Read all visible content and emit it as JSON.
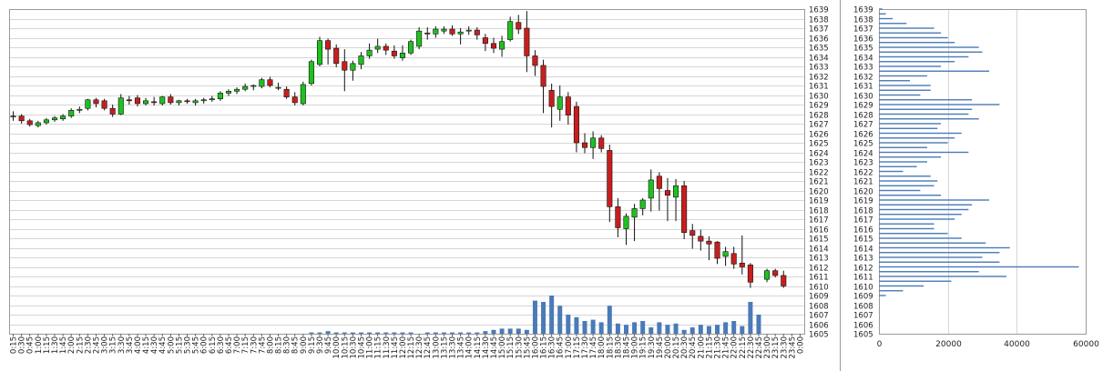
{
  "chart_data": [
    {
      "type": "candlestick",
      "title": "",
      "xlabel": "",
      "ylabel": "",
      "ylim": [
        1605,
        1639
      ],
      "yticks": [
        1605,
        1606,
        1607,
        1608,
        1609,
        1610,
        1611,
        1612,
        1613,
        1614,
        1615,
        1616,
        1617,
        1618,
        1619,
        1620,
        1621,
        1622,
        1623,
        1624,
        1625,
        1626,
        1627,
        1628,
        1629,
        1630,
        1631,
        1632,
        1633,
        1634,
        1635,
        1636,
        1637,
        1638,
        1639
      ],
      "up_color": "#1fc11f",
      "down_color": "#c81e1e",
      "volume_color": "#4a7ab8",
      "categories": [
        "0:15",
        "0:30",
        "0:45",
        "1:00",
        "1:15",
        "1:30",
        "1:45",
        "2:00",
        "2:15",
        "2:30",
        "2:45",
        "3:00",
        "3:15",
        "3:30",
        "3:45",
        "4:00",
        "4:15",
        "4:30",
        "4:45",
        "5:00",
        "5:15",
        "5:30",
        "5:45",
        "6:00",
        "6:15",
        "6:30",
        "6:45",
        "7:00",
        "7:15",
        "7:30",
        "7:45",
        "8:00",
        "8:15",
        "8:30",
        "8:45",
        "9:00",
        "9:15",
        "9:30",
        "9:45",
        "10:00",
        "10:15",
        "10:30",
        "10:45",
        "11:00",
        "11:15",
        "11:30",
        "11:45",
        "12:00",
        "12:15",
        "12:30",
        "12:45",
        "13:00",
        "13:15",
        "13:30",
        "13:45",
        "14:00",
        "14:15",
        "14:30",
        "14:45",
        "15:00",
        "15:15",
        "15:30",
        "15:45",
        "16:00",
        "16:15",
        "16:30",
        "16:45",
        "17:00",
        "17:15",
        "17:30",
        "17:45",
        "18:00",
        "18:15",
        "18:30",
        "18:45",
        "19:00",
        "19:15",
        "19:30",
        "19:45",
        "20:00",
        "20:15",
        "20:30",
        "20:45",
        "21:00",
        "21:15",
        "21:30",
        "21:45",
        "22:00",
        "22:15",
        "22:30",
        "22:45",
        "23:00",
        "23:15",
        "23:30",
        "23:45",
        "0:00"
      ],
      "ohlc": [
        [
          1627.8,
          1628.3,
          1627.3,
          1627.8
        ],
        [
          1627.8,
          1628.0,
          1627.0,
          1627.3
        ],
        [
          1627.3,
          1627.5,
          1626.7,
          1626.9
        ],
        [
          1626.8,
          1627.3,
          1626.6,
          1627.1
        ],
        [
          1627.1,
          1627.6,
          1626.9,
          1627.4
        ],
        [
          1627.4,
          1627.8,
          1627.2,
          1627.6
        ],
        [
          1627.5,
          1628.0,
          1627.3,
          1627.8
        ],
        [
          1627.8,
          1628.6,
          1627.6,
          1628.4
        ],
        [
          1628.4,
          1628.8,
          1628.1,
          1628.5
        ],
        [
          1628.6,
          1629.6,
          1628.4,
          1629.5
        ],
        [
          1629.5,
          1629.7,
          1628.7,
          1629.1
        ],
        [
          1629.4,
          1629.6,
          1628.4,
          1628.6
        ],
        [
          1628.6,
          1629.0,
          1627.7,
          1628.0
        ],
        [
          1628.0,
          1630.1,
          1627.9,
          1629.7
        ],
        [
          1629.5,
          1629.9,
          1629.0,
          1629.4
        ],
        [
          1629.7,
          1630.0,
          1628.8,
          1629.1
        ],
        [
          1629.1,
          1629.7,
          1628.9,
          1629.4
        ],
        [
          1629.3,
          1629.8,
          1628.9,
          1629.2
        ],
        [
          1629.1,
          1629.9,
          1628.9,
          1629.8
        ],
        [
          1629.8,
          1630.1,
          1629.0,
          1629.2
        ],
        [
          1629.2,
          1629.5,
          1628.9,
          1629.4
        ],
        [
          1629.4,
          1629.6,
          1629.1,
          1629.3
        ],
        [
          1629.2,
          1629.6,
          1628.9,
          1629.4
        ],
        [
          1629.4,
          1629.7,
          1629.1,
          1629.5
        ],
        [
          1629.5,
          1629.9,
          1629.3,
          1629.6
        ],
        [
          1629.6,
          1630.4,
          1629.4,
          1630.2
        ],
        [
          1630.2,
          1630.6,
          1629.9,
          1630.4
        ],
        [
          1630.4,
          1630.8,
          1630.1,
          1630.6
        ],
        [
          1630.6,
          1631.2,
          1630.4,
          1630.9
        ],
        [
          1630.9,
          1631.1,
          1630.5,
          1631.0
        ],
        [
          1630.9,
          1631.8,
          1630.7,
          1631.6
        ],
        [
          1631.6,
          1631.9,
          1630.8,
          1631.0
        ],
        [
          1630.8,
          1631.3,
          1630.5,
          1630.8
        ],
        [
          1630.6,
          1630.9,
          1629.6,
          1629.8
        ],
        [
          1629.8,
          1630.3,
          1628.9,
          1629.2
        ],
        [
          1629.1,
          1631.4,
          1628.9,
          1631.1
        ],
        [
          1631.2,
          1633.7,
          1631.0,
          1633.5
        ],
        [
          1633.2,
          1636.1,
          1633.0,
          1635.7
        ],
        [
          1635.7,
          1635.9,
          1633.2,
          1634.8
        ],
        [
          1634.9,
          1635.3,
          1632.9,
          1633.3
        ],
        [
          1633.5,
          1634.8,
          1630.4,
          1632.6
        ],
        [
          1632.6,
          1633.6,
          1631.5,
          1633.3
        ],
        [
          1633.2,
          1634.5,
          1632.7,
          1634.1
        ],
        [
          1634.1,
          1635.4,
          1633.8,
          1634.7
        ],
        [
          1634.8,
          1635.9,
          1634.4,
          1635.1
        ],
        [
          1635.1,
          1635.4,
          1634.2,
          1634.7
        ],
        [
          1634.6,
          1635.2,
          1633.8,
          1634.1
        ],
        [
          1633.9,
          1635.2,
          1633.6,
          1634.4
        ],
        [
          1634.4,
          1635.8,
          1634.2,
          1635.6
        ],
        [
          1635.1,
          1637.1,
          1634.8,
          1636.7
        ],
        [
          1636.5,
          1637.1,
          1635.8,
          1636.4
        ],
        [
          1636.4,
          1637.2,
          1636.0,
          1636.9
        ],
        [
          1636.7,
          1637.2,
          1636.4,
          1636.9
        ],
        [
          1636.9,
          1637.3,
          1636.2,
          1636.4
        ],
        [
          1636.4,
          1637.0,
          1635.3,
          1636.6
        ],
        [
          1636.7,
          1637.2,
          1636.3,
          1636.8
        ],
        [
          1636.8,
          1637.1,
          1635.8,
          1636.3
        ],
        [
          1636.0,
          1636.4,
          1634.6,
          1635.4
        ],
        [
          1635.4,
          1636.0,
          1634.4,
          1634.9
        ],
        [
          1634.8,
          1636.2,
          1634.0,
          1635.6
        ],
        [
          1635.8,
          1638.2,
          1635.6,
          1637.7
        ],
        [
          1637.6,
          1638.4,
          1636.4,
          1636.9
        ],
        [
          1637.0,
          1638.8,
          1632.4,
          1634.1
        ],
        [
          1634.1,
          1634.7,
          1632.0,
          1633.1
        ],
        [
          1633.1,
          1633.7,
          1628.1,
          1630.9
        ],
        [
          1630.5,
          1631.2,
          1626.6,
          1628.8
        ],
        [
          1628.5,
          1631.0,
          1627.3,
          1629.8
        ],
        [
          1629.8,
          1630.3,
          1626.9,
          1627.9
        ],
        [
          1628.8,
          1629.3,
          1624.0,
          1625.0
        ],
        [
          1625.0,
          1626.0,
          1623.9,
          1624.5
        ],
        [
          1624.5,
          1626.2,
          1623.3,
          1625.5
        ],
        [
          1625.5,
          1625.8,
          1624.0,
          1624.4
        ],
        [
          1624.2,
          1624.8,
          1616.7,
          1618.3
        ],
        [
          1618.3,
          1619.2,
          1615.1,
          1616.1
        ],
        [
          1616.0,
          1617.6,
          1614.3,
          1617.3
        ],
        [
          1617.2,
          1618.6,
          1614.7,
          1618.1
        ],
        [
          1618.1,
          1619.2,
          1617.4,
          1619.0
        ],
        [
          1619.2,
          1622.2,
          1617.8,
          1621.1
        ],
        [
          1621.5,
          1621.9,
          1617.9,
          1620.2
        ],
        [
          1620.0,
          1621.3,
          1616.8,
          1619.5
        ],
        [
          1619.3,
          1621.2,
          1616.8,
          1620.5
        ],
        [
          1620.5,
          1621.0,
          1614.9,
          1615.6
        ],
        [
          1615.8,
          1616.5,
          1613.9,
          1615.3
        ],
        [
          1615.2,
          1615.9,
          1613.7,
          1614.7
        ],
        [
          1614.7,
          1615.2,
          1612.7,
          1614.4
        ],
        [
          1614.6,
          1614.7,
          1612.3,
          1612.9
        ],
        [
          1613.1,
          1614.1,
          1612.1,
          1613.6
        ],
        [
          1613.4,
          1614.1,
          1611.8,
          1612.3
        ],
        [
          1612.4,
          1615.3,
          1611.2,
          1612.0
        ],
        [
          1612.2,
          1612.4,
          1609.8,
          1610.4
        ],
        null,
        [
          1610.7,
          1611.8,
          1610.4,
          1611.6
        ],
        [
          1611.6,
          1611.8,
          1610.9,
          1611.1
        ],
        [
          1611.1,
          1611.6,
          1609.8,
          1610.0
        ],
        null,
        null
      ],
      "volume": [
        0,
        0,
        0,
        0,
        0,
        0,
        0,
        0,
        0,
        0,
        0,
        0,
        0,
        0,
        0,
        0,
        0,
        0,
        0,
        0,
        0,
        0,
        0,
        0,
        0,
        0,
        0,
        0,
        0,
        0,
        0,
        0,
        0,
        0,
        0,
        0,
        1,
        1,
        2,
        1,
        1,
        1,
        1,
        1,
        1,
        1,
        1,
        1,
        1,
        0,
        1,
        1,
        1,
        1,
        1,
        1,
        1,
        2,
        3,
        4,
        4,
        4,
        3,
        26,
        25,
        30,
        22,
        15,
        13,
        10,
        11,
        9,
        22,
        8,
        7,
        9,
        10,
        5,
        9,
        7,
        8,
        3,
        5,
        7,
        6,
        7,
        9,
        10,
        6,
        25,
        15,
        0,
        0,
        0,
        0,
        0
      ]
    },
    {
      "type": "bar",
      "orientation": "horizontal",
      "title": "",
      "xlim": [
        0,
        60000
      ],
      "xticks": [
        0,
        20000,
        40000,
        60000
      ],
      "ylim": [
        1605,
        1639
      ],
      "yticks": [
        1605,
        1606,
        1607,
        1608,
        1609,
        1610,
        1611,
        1612,
        1613,
        1614,
        1615,
        1616,
        1617,
        1618,
        1619,
        1620,
        1621,
        1622,
        1623,
        1624,
        1625,
        1626,
        1627,
        1628,
        1629,
        1630,
        1631,
        1632,
        1633,
        1634,
        1635,
        1636,
        1637,
        1638,
        1639
      ],
      "color": "#4a7ab8",
      "levels": [
        1639.0,
        1638.5,
        1638.0,
        1637.5,
        1637.0,
        1636.5,
        1636.0,
        1635.5,
        1635.0,
        1634.5,
        1634.0,
        1633.5,
        1633.0,
        1632.5,
        1632.0,
        1631.5,
        1631.0,
        1630.5,
        1630.0,
        1629.5,
        1629.0,
        1628.5,
        1628.0,
        1627.5,
        1627.0,
        1626.5,
        1626.0,
        1625.5,
        1625.0,
        1624.5,
        1624.0,
        1623.5,
        1623.0,
        1622.5,
        1622.0,
        1621.5,
        1621.0,
        1620.5,
        1620.0,
        1619.5,
        1619.0,
        1618.5,
        1618.0,
        1617.5,
        1617.0,
        1616.5,
        1616.0,
        1615.5,
        1615.0,
        1614.5,
        1614.0,
        1613.5,
        1613.0,
        1612.5,
        1612.0,
        1611.5,
        1611.0,
        1610.5,
        1610.0,
        1609.5,
        1609.0
      ],
      "values": [
        1000,
        2000,
        4000,
        8000,
        16000,
        18000,
        20000,
        22000,
        29000,
        30000,
        26000,
        22000,
        18000,
        32000,
        14000,
        9000,
        15000,
        15000,
        12000,
        27000,
        35000,
        27000,
        26000,
        29000,
        18000,
        17000,
        24000,
        22000,
        20000,
        14000,
        26000,
        18000,
        14000,
        11000,
        7000,
        15000,
        17000,
        16000,
        12000,
        18000,
        32000,
        27000,
        26000,
        24000,
        22000,
        16000,
        16000,
        20000,
        24000,
        31000,
        38000,
        35000,
        30000,
        35000,
        58000,
        29000,
        37000,
        21000,
        13000,
        7000,
        2000
      ]
    }
  ]
}
